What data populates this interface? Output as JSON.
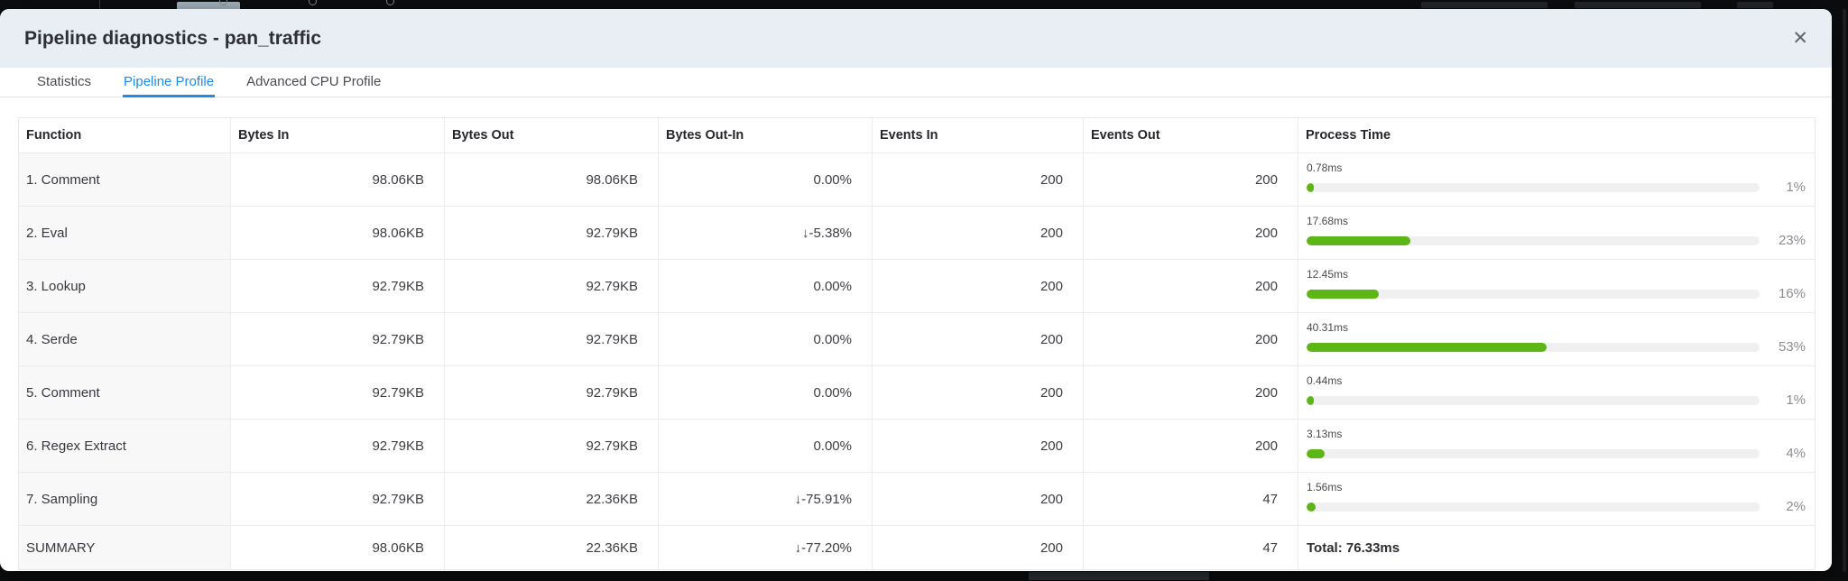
{
  "window": {
    "title": "Pipeline diagnostics - pan_traffic",
    "close_icon": "✕"
  },
  "tabs": [
    {
      "label": "Statistics",
      "active": false
    },
    {
      "label": "Pipeline Profile",
      "active": true
    },
    {
      "label": "Advanced CPU Profile",
      "active": false
    }
  ],
  "table": {
    "columns": [
      "Function",
      "Bytes In",
      "Bytes Out",
      "Bytes Out-In",
      "Events In",
      "Events Out",
      "Process Time"
    ],
    "rows": [
      {
        "function": "1. Comment",
        "bytes_in": "98.06KB",
        "bytes_out": "98.06KB",
        "bytes_out_in": "0.00%",
        "events_in": "200",
        "events_out": "200",
        "process_ms": "0.78ms",
        "process_pct_label": "1%",
        "process_pct": 1
      },
      {
        "function": "2. Eval",
        "bytes_in": "98.06KB",
        "bytes_out": "92.79KB",
        "bytes_out_in": "↓-5.38%",
        "events_in": "200",
        "events_out": "200",
        "process_ms": "17.68ms",
        "process_pct_label": "23%",
        "process_pct": 23
      },
      {
        "function": "3. Lookup",
        "bytes_in": "92.79KB",
        "bytes_out": "92.79KB",
        "bytes_out_in": "0.00%",
        "events_in": "200",
        "events_out": "200",
        "process_ms": "12.45ms",
        "process_pct_label": "16%",
        "process_pct": 16
      },
      {
        "function": "4. Serde",
        "bytes_in": "92.79KB",
        "bytes_out": "92.79KB",
        "bytes_out_in": "0.00%",
        "events_in": "200",
        "events_out": "200",
        "process_ms": "40.31ms",
        "process_pct_label": "53%",
        "process_pct": 53
      },
      {
        "function": "5. Comment",
        "bytes_in": "92.79KB",
        "bytes_out": "92.79KB",
        "bytes_out_in": "0.00%",
        "events_in": "200",
        "events_out": "200",
        "process_ms": "0.44ms",
        "process_pct_label": "1%",
        "process_pct": 1
      },
      {
        "function": "6. Regex Extract",
        "bytes_in": "92.79KB",
        "bytes_out": "92.79KB",
        "bytes_out_in": "0.00%",
        "events_in": "200",
        "events_out": "200",
        "process_ms": "3.13ms",
        "process_pct_label": "4%",
        "process_pct": 4
      },
      {
        "function": "7. Sampling",
        "bytes_in": "92.79KB",
        "bytes_out": "22.36KB",
        "bytes_out_in": "↓-75.91%",
        "events_in": "200",
        "events_out": "47",
        "process_ms": "1.56ms",
        "process_pct_label": "2%",
        "process_pct": 2
      }
    ],
    "summary": {
      "function": "SUMMARY",
      "bytes_in": "98.06KB",
      "bytes_out": "22.36KB",
      "bytes_out_in": "↓-77.20%",
      "events_in": "200",
      "events_out": "47",
      "total_label": "Total: 76.33ms"
    }
  },
  "colors": {
    "accent_blue": "#1e8be9",
    "bar_green": "#5cb615",
    "bar_track": "#f0f0f0",
    "modal_header_bg": "#e9eef4"
  }
}
